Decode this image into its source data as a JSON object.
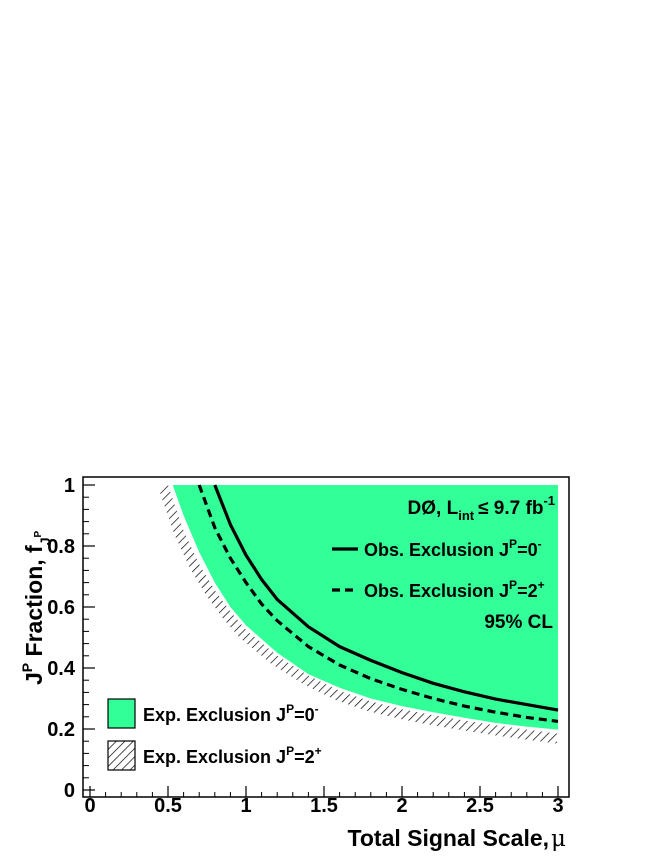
{
  "chart_data": {
    "type": "area",
    "xlabel": "Total Signal Scale,",
    "xlabel_symbol": "μ",
    "ylabel_main": "J",
    "ylabel_sup": "P",
    "ylabel_rest": " Fraction, f",
    "ylabel_sub": "J",
    "ylabel_subsup": "P",
    "xlim": [
      0,
      3
    ],
    "ylim": [
      0,
      1
    ],
    "x_ticks": [
      {
        "value": 0,
        "label": "0"
      },
      {
        "value": 0.5,
        "label": "0.5"
      },
      {
        "value": 1,
        "label": "1"
      },
      {
        "value": 1.5,
        "label": "1.5"
      },
      {
        "value": 2,
        "label": "2"
      },
      {
        "value": 2.5,
        "label": "2.5"
      },
      {
        "value": 3,
        "label": "3"
      }
    ],
    "y_ticks": [
      {
        "value": 0,
        "label": "0"
      },
      {
        "value": 0.2,
        "label": "0.2"
      },
      {
        "value": 0.4,
        "label": "0.4"
      },
      {
        "value": 0.6,
        "label": "0.6"
      },
      {
        "value": 0.8,
        "label": "0.8"
      },
      {
        "value": 1,
        "label": "1"
      }
    ],
    "grid": false,
    "annotations": {
      "experiment": "DØ, L",
      "lumi_sub": "int",
      "lumi_rel": "≤ 9.7 fb",
      "lumi_sup": "-1",
      "cl": "95% CL"
    },
    "series": [
      {
        "name": "Exp. Exclusion J",
        "sup": "P",
        "suffix": "=0",
        "suffix_sup": "-",
        "kind": "filled-band",
        "color": "#33ff99",
        "x": [
          0.53,
          0.6,
          0.7,
          0.8,
          0.9,
          1.0,
          1.2,
          1.4,
          1.6,
          1.8,
          2.0,
          2.2,
          2.4,
          2.6,
          2.8,
          3.0
        ],
        "y": [
          1.0,
          0.9,
          0.78,
          0.68,
          0.6,
          0.54,
          0.45,
          0.38,
          0.335,
          0.3,
          0.275,
          0.255,
          0.237,
          0.22,
          0.208,
          0.198
        ]
      },
      {
        "name": "Exp. Exclusion J",
        "sup": "P",
        "suffix": "=2",
        "suffix_sup": "+",
        "kind": "hatched-boundary",
        "color": "#000000",
        "x": [
          0.5,
          0.6,
          0.7,
          0.8,
          0.9,
          1.0,
          1.2,
          1.4,
          1.6,
          1.8,
          2.0,
          2.2,
          2.4,
          2.6,
          2.8,
          3.0
        ],
        "y": [
          1.0,
          0.85,
          0.74,
          0.655,
          0.585,
          0.525,
          0.44,
          0.375,
          0.325,
          0.29,
          0.265,
          0.245,
          0.228,
          0.212,
          0.198,
          0.185
        ]
      },
      {
        "name": "Obs. Exclusion J",
        "sup": "P",
        "suffix": "=0",
        "suffix_sup": "-",
        "kind": "solid-line",
        "color": "#000000",
        "x": [
          0.8,
          0.9,
          1.0,
          1.1,
          1.2,
          1.4,
          1.6,
          1.8,
          2.0,
          2.2,
          2.4,
          2.6,
          2.8,
          3.0
        ],
        "y": [
          1.0,
          0.87,
          0.77,
          0.69,
          0.625,
          0.535,
          0.47,
          0.425,
          0.385,
          0.35,
          0.322,
          0.298,
          0.28,
          0.262
        ]
      },
      {
        "name": "Obs. Exclusion J",
        "sup": "P",
        "suffix": "=2",
        "suffix_sup": "+",
        "kind": "dashed-line",
        "color": "#000000",
        "x": [
          0.7,
          0.8,
          0.9,
          1.0,
          1.1,
          1.2,
          1.4,
          1.6,
          1.8,
          2.0,
          2.2,
          2.4,
          2.6,
          2.8,
          3.0
        ],
        "y": [
          1.0,
          0.86,
          0.76,
          0.68,
          0.61,
          0.555,
          0.47,
          0.41,
          0.365,
          0.33,
          0.3,
          0.275,
          0.255,
          0.238,
          0.225
        ]
      }
    ],
    "legend_placement": "bottom-left and top-right"
  }
}
